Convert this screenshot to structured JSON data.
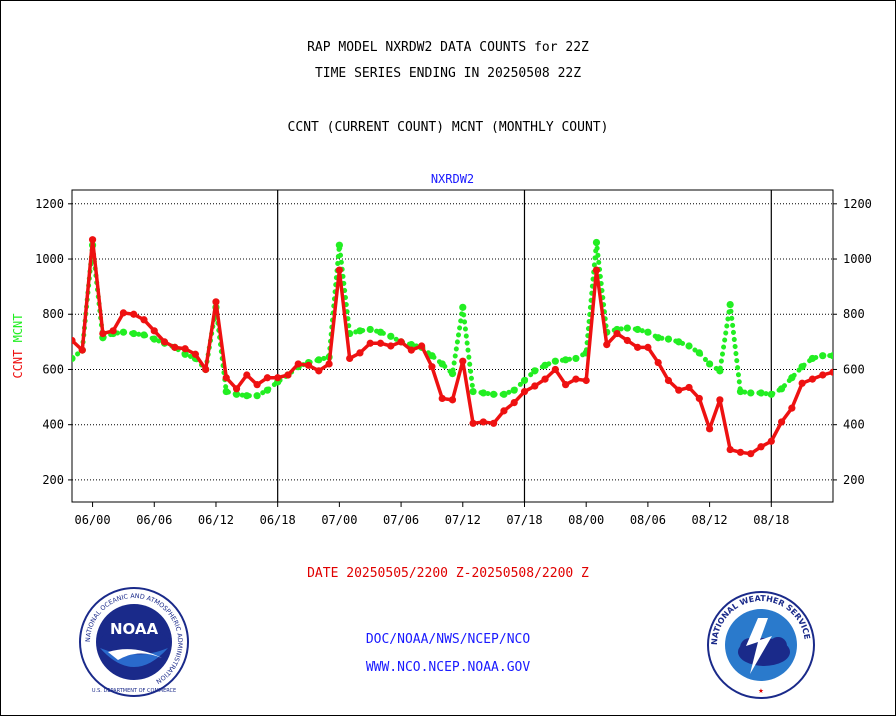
{
  "titles": {
    "line1": "RAP MODEL NXRDW2 DATA COUNTS for 22Z",
    "line2": "TIME SERIES ENDING IN 20250508 22Z",
    "line3": "CCNT (CURRENT COUNT) MCNT (MONTHLY COUNT)"
  },
  "footer": {
    "date_range": "DATE 20250505/2200 Z-20250508/2200 Z",
    "org_path": "DOC/NOAA/NWS/NCEP/NCO",
    "website": "WWW.NCO.NCEP.NOAA.GOV"
  },
  "logos": {
    "left_text": "NOAA",
    "left_ring": "NATIONAL OCEANIC AND ATMOSPHERIC ADMINISTRATION",
    "left_bottom": "U.S. DEPARTMENT OF COMMERCE",
    "right_ring": "NATIONAL WEATHER SERVICE"
  },
  "chart_data": {
    "type": "line",
    "title": "NXRDW2",
    "ylabel_left": [
      "CCNT",
      "MCNT"
    ],
    "ylim": [
      120,
      1250
    ],
    "yticks": [
      200,
      400,
      600,
      800,
      1000,
      1200
    ],
    "xlim": [
      -2,
      72
    ],
    "xticks": [
      {
        "x": 0,
        "label": "06/00"
      },
      {
        "x": 6,
        "label": "06/06"
      },
      {
        "x": 12,
        "label": "06/12"
      },
      {
        "x": 18,
        "label": "06/18"
      },
      {
        "x": 24,
        "label": "07/00"
      },
      {
        "x": 30,
        "label": "07/06"
      },
      {
        "x": 36,
        "label": "07/12"
      },
      {
        "x": 42,
        "label": "07/18"
      },
      {
        "x": 48,
        "label": "08/00"
      },
      {
        "x": 54,
        "label": "08/06"
      },
      {
        "x": 60,
        "label": "08/12"
      },
      {
        "x": 66,
        "label": "08/18"
      }
    ],
    "day_lines": [
      18,
      42,
      66
    ],
    "grid": true,
    "colors": {
      "ccnt": "#ee1111",
      "mcnt": "#22ee22",
      "title": "#1a1aff"
    },
    "x": [
      -2,
      -1,
      0,
      1,
      2,
      3,
      4,
      5,
      6,
      7,
      8,
      9,
      10,
      11,
      12,
      13,
      14,
      15,
      16,
      17,
      18,
      19,
      20,
      21,
      22,
      23,
      24,
      25,
      26,
      27,
      28,
      29,
      30,
      31,
      32,
      33,
      34,
      35,
      36,
      37,
      38,
      39,
      40,
      41,
      42,
      43,
      44,
      45,
      46,
      47,
      48,
      49,
      50,
      51,
      52,
      53,
      54,
      55,
      56,
      57,
      58,
      59,
      60,
      61,
      62,
      63,
      64,
      65,
      66,
      67,
      68,
      69,
      70,
      71,
      72
    ],
    "series": [
      {
        "name": "CCNT",
        "values": [
          705,
          670,
          1070,
          730,
          740,
          805,
          800,
          780,
          740,
          700,
          680,
          675,
          655,
          600,
          845,
          570,
          530,
          580,
          545,
          570,
          570,
          580,
          620,
          615,
          595,
          620,
          960,
          640,
          660,
          695,
          695,
          685,
          700,
          670,
          685,
          610,
          495,
          490,
          630,
          405,
          410,
          405,
          450,
          480,
          520,
          540,
          565,
          600,
          545,
          565,
          560,
          960,
          690,
          730,
          705,
          680,
          680,
          625,
          560,
          525,
          535,
          495,
          385,
          490,
          310,
          300,
          295,
          320,
          340,
          410,
          460,
          550,
          565,
          580,
          590
        ]
      },
      {
        "name": "MCNT",
        "values": [
          640,
          670,
          1050,
          715,
          730,
          735,
          730,
          725,
          710,
          695,
          680,
          655,
          640,
          600,
          825,
          520,
          510,
          505,
          505,
          525,
          555,
          580,
          610,
          625,
          635,
          645,
          1050,
          730,
          740,
          745,
          735,
          720,
          700,
          690,
          680,
          650,
          620,
          585,
          825,
          520,
          515,
          510,
          510,
          525,
          560,
          595,
          615,
          630,
          635,
          640,
          660,
          1060,
          735,
          745,
          750,
          745,
          735,
          715,
          710,
          700,
          685,
          660,
          620,
          595,
          835,
          520,
          515,
          515,
          510,
          530,
          570,
          610,
          640,
          650,
          650
        ]
      }
    ]
  }
}
